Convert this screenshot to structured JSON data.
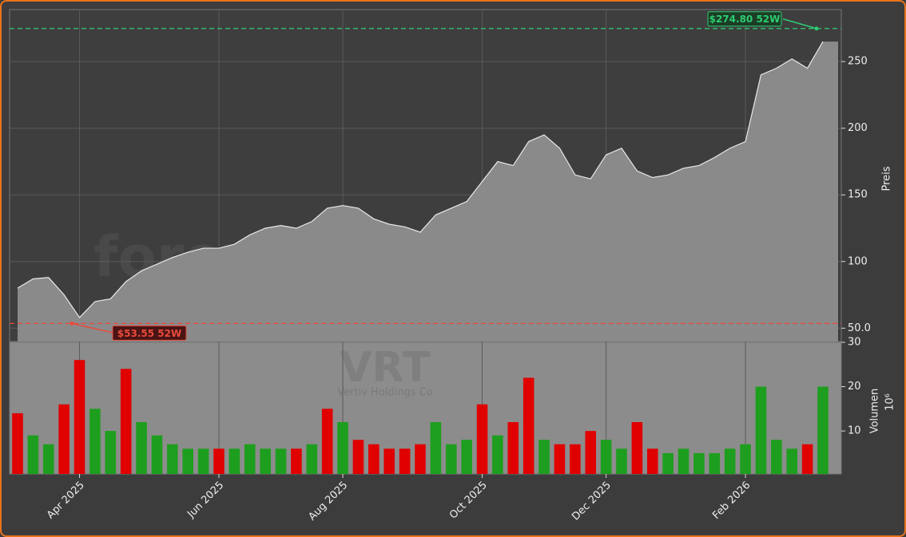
{
  "chart_data": [
    {
      "type": "area",
      "ylabel": "Preis",
      "color": "#8a8a8a",
      "line_color": "#e8e8e8",
      "categories": [
        null,
        null,
        null,
        null,
        "Apr 2025",
        null,
        null,
        null,
        null,
        null,
        null,
        null,
        null,
        "Jun 2025",
        null,
        null,
        null,
        null,
        null,
        null,
        null,
        "Aug 2025",
        null,
        null,
        null,
        null,
        null,
        null,
        null,
        null,
        "Oct 2025",
        null,
        null,
        null,
        null,
        null,
        null,
        null,
        "Dec 2025",
        null,
        null,
        null,
        null,
        null,
        null,
        null,
        null,
        "Feb 2026",
        null,
        null,
        null,
        null,
        null
      ],
      "values": [
        80,
        87,
        88,
        75,
        58,
        70,
        72,
        85,
        93,
        98,
        103,
        107,
        110,
        110,
        113,
        120,
        125,
        127,
        125,
        130,
        140,
        142,
        140,
        132,
        128,
        126,
        122,
        135,
        140,
        145,
        160,
        175,
        172,
        190,
        195,
        185,
        165,
        162,
        180,
        185,
        168,
        163,
        165,
        170,
        172,
        178,
        185,
        190,
        240,
        245,
        252,
        245,
        265
      ],
      "ylim": [
        40,
        289
      ],
      "yticks": [
        {
          "value": 50,
          "label": "50.0"
        },
        100,
        150,
        200,
        250
      ],
      "grid": true,
      "annotations": [
        {
          "value": 274.8,
          "label": "$274.80 52W",
          "color": "#2ecc71"
        },
        {
          "value": 53.55,
          "label": "$53.55 52W",
          "color": "#e74c3c"
        }
      ],
      "watermarks": [
        "forexsignale.trade",
        "VRT",
        "Vertiv Holdings Co"
      ]
    },
    {
      "type": "bar",
      "ylabel": "Volumen",
      "offset_label": "10⁶",
      "values": [
        14,
        9,
        7,
        16,
        26,
        15,
        10,
        24,
        12,
        9,
        7,
        6,
        6,
        6,
        6,
        7,
        6,
        6,
        6,
        7,
        15,
        12,
        8,
        7,
        6,
        6,
        7,
        12,
        7,
        8,
        16,
        9,
        12,
        22,
        8,
        7,
        7,
        10,
        8,
        6,
        12,
        6,
        5,
        6,
        5,
        5,
        6,
        7,
        20,
        8,
        6,
        7,
        20
      ],
      "bar_colors": [
        "#e00000",
        "#1e9e1e",
        "#1e9e1e",
        "#e00000",
        "#e00000",
        "#1e9e1e",
        "#1e9e1e",
        "#e00000",
        "#1e9e1e",
        "#1e9e1e",
        "#1e9e1e",
        "#1e9e1e",
        "#1e9e1e",
        "#e00000",
        "#1e9e1e",
        "#1e9e1e",
        "#1e9e1e",
        "#1e9e1e",
        "#e00000",
        "#1e9e1e",
        "#e00000",
        "#1e9e1e",
        "#e00000",
        "#e00000",
        "#e00000",
        "#e00000",
        "#e00000",
        "#1e9e1e",
        "#1e9e1e",
        "#1e9e1e",
        "#e00000",
        "#1e9e1e",
        "#e00000",
        "#e00000",
        "#1e9e1e",
        "#e00000",
        "#e00000",
        "#e00000",
        "#1e9e1e",
        "#1e9e1e",
        "#e00000",
        "#e00000",
        "#1e9e1e",
        "#1e9e1e",
        "#1e9e1e",
        "#1e9e1e",
        "#1e9e1e",
        "#1e9e1e",
        "#1e9e1e",
        "#1e9e1e",
        "#1e9e1e",
        "#e00000",
        "#1e9e1e"
      ],
      "ylim": [
        0.3,
        30
      ],
      "yticks": [
        10,
        20,
        30
      ]
    }
  ]
}
